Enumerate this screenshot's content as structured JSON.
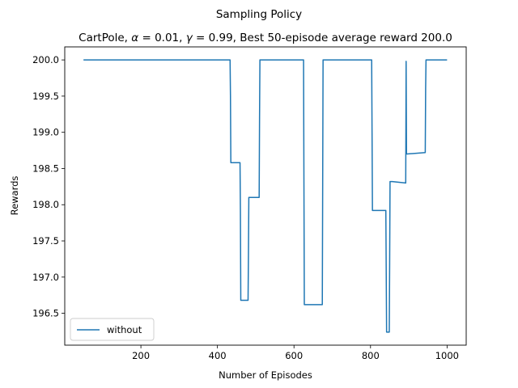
{
  "chart_data": {
    "type": "line",
    "suptitle": "Sampling Policy",
    "title": {
      "prefix": "CartPole, ",
      "alpha_symbol": "α",
      "alpha_text": " = 0.01, ",
      "gamma_symbol": "γ",
      "gamma_text": " = 0.99, Best 50-episode average reward 200.0"
    },
    "xlabel": "Number of Episodes",
    "ylabel": "Rewards",
    "xlim": [
      1,
      1050
    ],
    "ylim": [
      196.06,
      200.18
    ],
    "xticks": [
      200,
      400,
      600,
      800,
      1000
    ],
    "yticks": [
      196.5,
      197.0,
      197.5,
      198.0,
      198.5,
      199.0,
      199.5,
      200.0
    ],
    "ytick_labels": [
      "196.5",
      "197.0",
      "197.5",
      "198.0",
      "198.5",
      "199.0",
      "199.5",
      "200.0"
    ],
    "grid": false,
    "legend_position": "lower-left",
    "series": [
      {
        "name": "without",
        "color": "#1f77b4",
        "x": [
          50,
          433,
          434,
          435,
          459,
          460,
          461,
          480,
          481,
          482,
          509,
          510,
          511,
          625,
          626,
          627,
          674,
          675,
          676,
          803,
          804,
          805,
          840,
          841,
          842,
          849,
          850,
          851,
          855,
          856,
          857,
          892,
          893,
          894,
          895,
          943,
          944,
          945,
          1000
        ],
        "values": [
          200.0,
          200.0,
          199.5,
          198.58,
          198.58,
          197.9,
          196.68,
          196.68,
          197.3,
          198.1,
          198.1,
          199.2,
          200.0,
          200.0,
          198.3,
          196.62,
          196.62,
          198.3,
          200.0,
          200.0,
          199.0,
          197.92,
          197.92,
          197.1,
          196.24,
          196.24,
          197.2,
          198.32,
          198.32,
          198.32,
          198.32,
          198.3,
          199.98,
          198.7,
          198.7,
          198.72,
          199.6,
          200.0,
          200.0
        ]
      }
    ]
  }
}
